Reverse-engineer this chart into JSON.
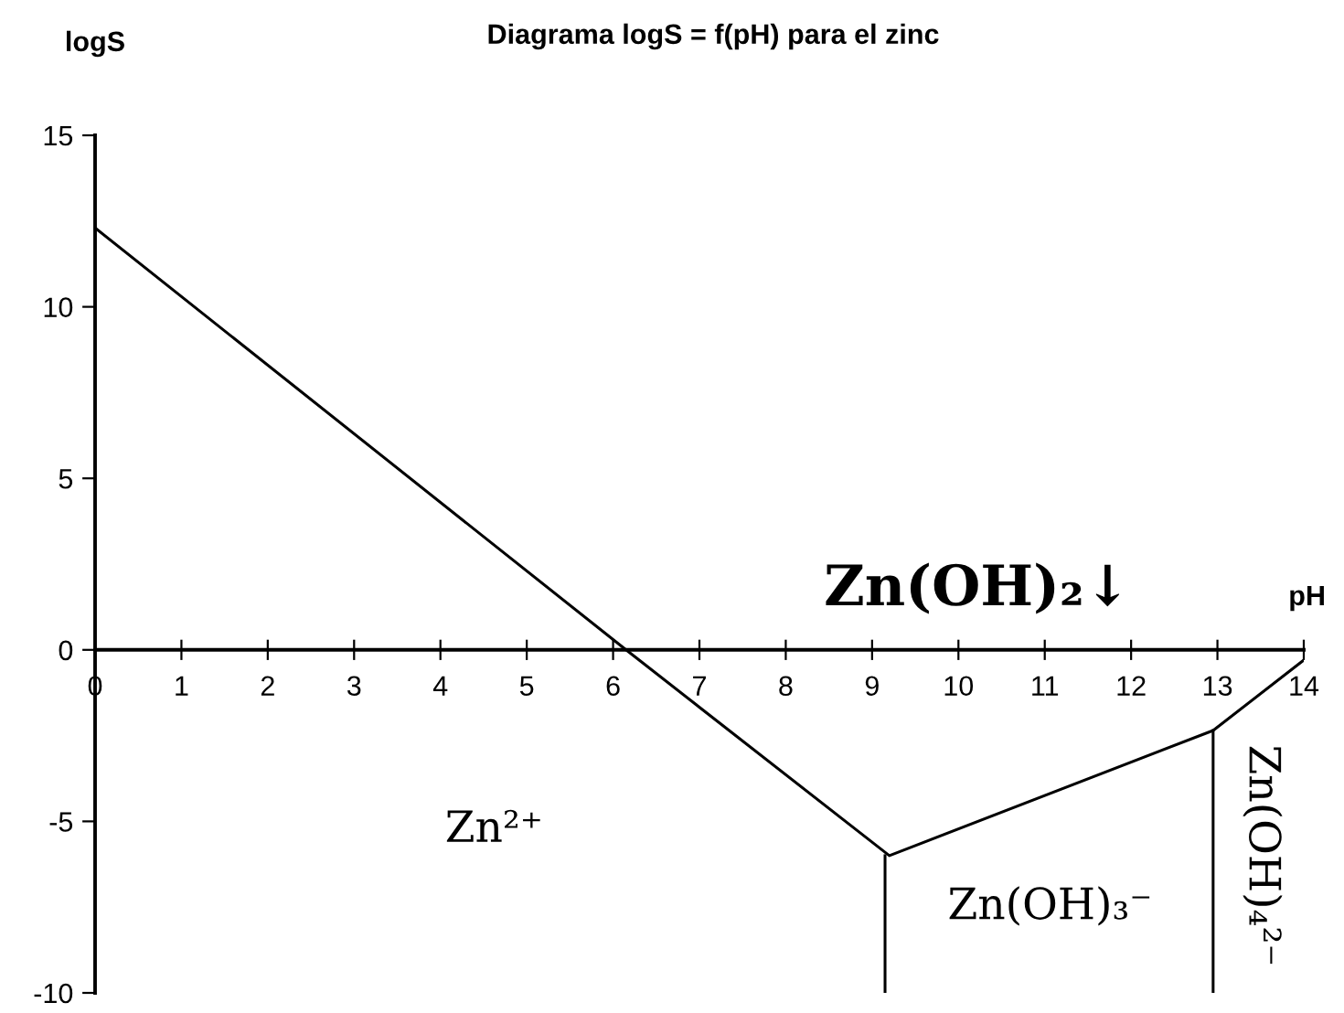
{
  "chart_data": {
    "type": "line",
    "title": "Diagrama logS = f(pH) para el zinc",
    "xlabel": "pH",
    "ylabel": "logS",
    "xlim": [
      0,
      14
    ],
    "ylim": [
      -10,
      15
    ],
    "xticks": [
      0,
      1,
      2,
      3,
      4,
      5,
      6,
      7,
      8,
      9,
      10,
      11,
      12,
      13,
      14
    ],
    "yticks": [
      -10,
      -5,
      0,
      5,
      10,
      15
    ],
    "grid": false,
    "marker": "none",
    "line_style": "solid",
    "series": [
      {
        "color": "#000000",
        "x": [
          0,
          6.15,
          9.2,
          12.95,
          14
        ],
        "values": [
          12.3,
          0,
          -6.0,
          -2.35,
          -0.3
        ]
      },
      {
        "color": "#000000",
        "x": [
          9.15,
          9.15
        ],
        "values": [
          -6.0,
          -10
        ]
      },
      {
        "color": "#000000",
        "x": [
          12.95,
          12.95
        ],
        "values": [
          -2.35,
          -10
        ]
      }
    ],
    "annotations": [
      "Zn(OH)₂↓",
      "Zn²⁺",
      "Zn(OH)₃⁻",
      "Zn(OH)₄²⁻"
    ]
  }
}
